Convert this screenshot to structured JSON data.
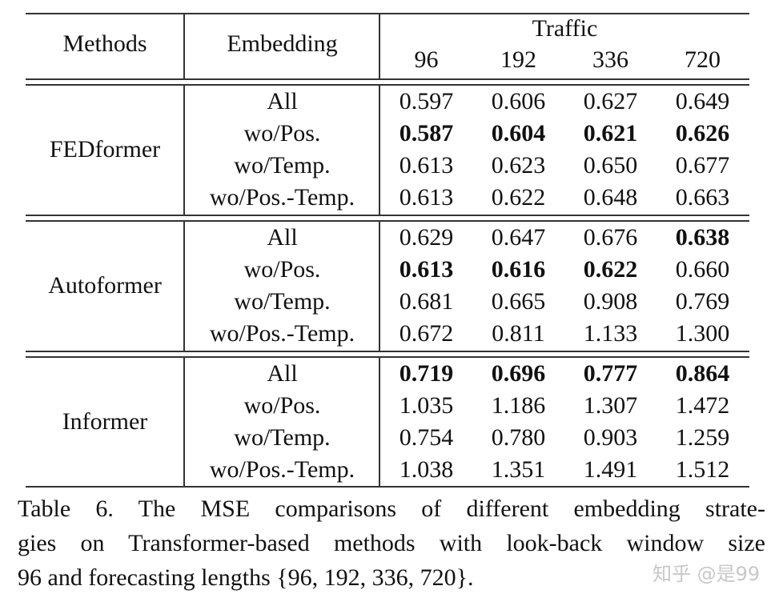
{
  "table": {
    "header": {
      "methods": "Methods",
      "embedding": "Embedding",
      "dataset": "Traffic",
      "horizons": [
        "96",
        "192",
        "336",
        "720"
      ]
    },
    "groups": [
      {
        "method": "FEDformer",
        "rows": [
          {
            "embedding": "All",
            "values": [
              "0.597",
              "0.606",
              "0.627",
              "0.649"
            ],
            "bold": [
              false,
              false,
              false,
              false
            ]
          },
          {
            "embedding": "wo/Pos.",
            "values": [
              "0.587",
              "0.604",
              "0.621",
              "0.626"
            ],
            "bold": [
              true,
              true,
              true,
              true
            ]
          },
          {
            "embedding": "wo/Temp.",
            "values": [
              "0.613",
              "0.623",
              "0.650",
              "0.677"
            ],
            "bold": [
              false,
              false,
              false,
              false
            ]
          },
          {
            "embedding": "wo/Pos.-Temp.",
            "values": [
              "0.613",
              "0.622",
              "0.648",
              "0.663"
            ],
            "bold": [
              false,
              false,
              false,
              false
            ]
          }
        ]
      },
      {
        "method": "Autoformer",
        "rows": [
          {
            "embedding": "All",
            "values": [
              "0.629",
              "0.647",
              "0.676",
              "0.638"
            ],
            "bold": [
              false,
              false,
              false,
              true
            ]
          },
          {
            "embedding": "wo/Pos.",
            "values": [
              "0.613",
              "0.616",
              "0.622",
              "0.660"
            ],
            "bold": [
              true,
              true,
              true,
              false
            ]
          },
          {
            "embedding": "wo/Temp.",
            "values": [
              "0.681",
              "0.665",
              "0.908",
              "0.769"
            ],
            "bold": [
              false,
              false,
              false,
              false
            ]
          },
          {
            "embedding": "wo/Pos.-Temp.",
            "values": [
              "0.672",
              "0.811",
              "1.133",
              "1.300"
            ],
            "bold": [
              false,
              false,
              false,
              false
            ]
          }
        ]
      },
      {
        "method": "Informer",
        "rows": [
          {
            "embedding": "All",
            "values": [
              "0.719",
              "0.696",
              "0.777",
              "0.864"
            ],
            "bold": [
              true,
              true,
              true,
              true
            ]
          },
          {
            "embedding": "wo/Pos.",
            "values": [
              "1.035",
              "1.186",
              "1.307",
              "1.472"
            ],
            "bold": [
              false,
              false,
              false,
              false
            ]
          },
          {
            "embedding": "wo/Temp.",
            "values": [
              "0.754",
              "0.780",
              "0.903",
              "1.259"
            ],
            "bold": [
              false,
              false,
              false,
              false
            ]
          },
          {
            "embedding": "wo/Pos.-Temp.",
            "values": [
              "1.038",
              "1.351",
              "1.491",
              "1.512"
            ],
            "bold": [
              false,
              false,
              false,
              false
            ]
          }
        ]
      }
    ]
  },
  "caption": {
    "lines": [
      "Table 6.  The MSE comparisons of different embedding strate-",
      "gies on Transformer-based methods with look-back window size",
      "96 and forecasting lengths {96, 192, 336, 720}."
    ]
  },
  "watermark": "知乎 @是99"
}
